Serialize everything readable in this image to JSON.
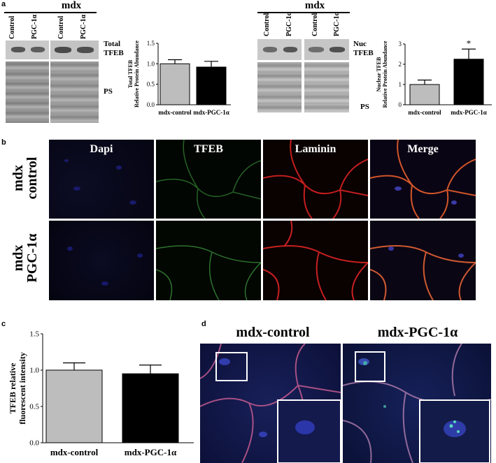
{
  "panels": {
    "a": "a",
    "b": "b",
    "c": "c",
    "d": "d"
  },
  "a_left": {
    "group": "mdx",
    "lanes": [
      "Control",
      "PGC-1α",
      "Control",
      "PGC-1α"
    ],
    "label_top": "Total",
    "label_top2": "TFEB",
    "label_ps": "PS"
  },
  "a_right": {
    "group": "mdx",
    "lanes": [
      "Control",
      "PGC-1α",
      "Control",
      "PGC-1α"
    ],
    "label_top": "Nuc",
    "label_top2": "TFEB",
    "label_ps": "PS"
  },
  "b": {
    "columns": [
      "Dapi",
      "TFEB",
      "Laminin",
      "Merge"
    ],
    "rows": [
      {
        "line1": "mdx",
        "line2": "control"
      },
      {
        "line1": "mdx",
        "line2": "PGC-1α"
      }
    ]
  },
  "d": {
    "titles": [
      "mdx-control",
      "mdx-PGC-1α"
    ]
  },
  "chart_data": [
    {
      "type": "bar",
      "panel": "a-left",
      "categories": [
        "mdx-control",
        "mdx-PGC-1α"
      ],
      "values": [
        1.0,
        0.92
      ],
      "errors": [
        0.1,
        0.14
      ],
      "colors": [
        "#bdbdbd",
        "#000000"
      ],
      "ylabel": "Total TFEB Relative Protein Abundance",
      "ylim": [
        0,
        1.5
      ],
      "yticks": [
        "0.0",
        "0.5",
        "1.0",
        "1.5"
      ],
      "annotations": []
    },
    {
      "type": "bar",
      "panel": "a-right",
      "categories": [
        "mdx-control",
        "mdx-PGC-1α"
      ],
      "values": [
        1.0,
        2.25
      ],
      "errors": [
        0.22,
        0.5
      ],
      "colors": [
        "#bdbdbd",
        "#000000"
      ],
      "ylabel": "Nuclear TFEB Relative Protein Abundance",
      "ylim": [
        0,
        3
      ],
      "yticks": [
        "0",
        "1",
        "2",
        "3"
      ],
      "annotations": [
        "",
        "*"
      ]
    },
    {
      "type": "bar",
      "panel": "c",
      "categories": [
        "mdx-control",
        "mdx-PGC-1α"
      ],
      "values": [
        1.0,
        0.95
      ],
      "errors": [
        0.1,
        0.12
      ],
      "colors": [
        "#bdbdbd",
        "#000000"
      ],
      "ylabel": "TFEB relative fluorescent intensity",
      "ylim": [
        0,
        1.5
      ],
      "yticks": [
        "0.0",
        "0.5",
        "1.0",
        "1.5"
      ],
      "annotations": []
    }
  ]
}
